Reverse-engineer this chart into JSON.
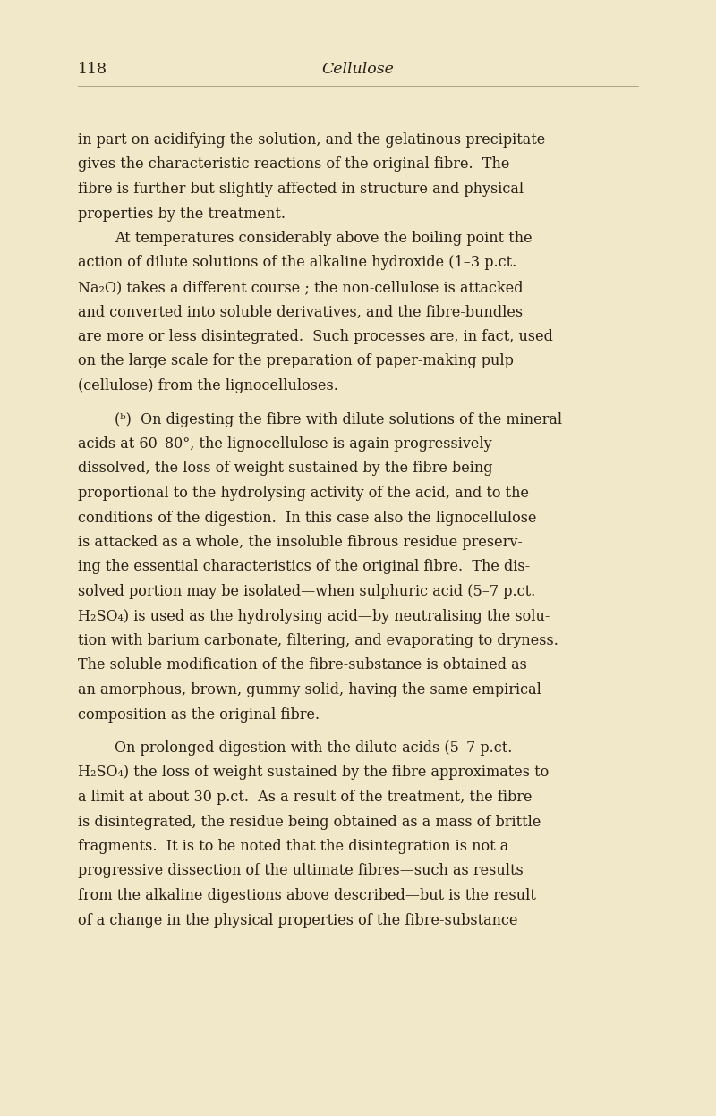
{
  "background_color": "#f0e8c8",
  "text_color": "#2a2018",
  "page_number": "118",
  "page_title": "Cellulose",
  "font_size_body": 11.5,
  "font_size_header": 12.5,
  "paragraphs": [
    {
      "indent": false,
      "blank_before": false,
      "lines": [
        "in part on acidifying the solution, and the gelatinous precipitate",
        "gives the characteristic reactions of the original fibre.  The",
        "fibre is further but slightly affected in structure and physical",
        "properties by the treatment."
      ]
    },
    {
      "indent": true,
      "blank_before": false,
      "lines": [
        "At temperatures considerably above the boiling point the",
        "action of dilute solutions of the alkaline hydroxide (1–3 p.ct.",
        "Na₂O) takes a different course ; the non-cellulose is attacked",
        "and converted into soluble derivatives, and the fibre-bundles",
        "are more or less disintegrated.  Such processes are, in fact, used",
        "on the large scale for the preparation of paper-making pulp",
        "(cellulose) from the lignocelluloses."
      ]
    },
    {
      "indent": true,
      "blank_before": true,
      "lines": [
        "(ᵇ)  On digesting the fibre with dilute solutions of the mineral",
        "acids at 60–80°, the lignocellulose is again progressively",
        "dissolved, the loss of weight sustained by the fibre being",
        "proportional to the hydrolysing activity of the acid, and to the",
        "conditions of the digestion.  In this case also the lignocellulose",
        "is attacked as a whole, the insoluble fibrous residue preserv-",
        "ing the essential characteristics of the original fibre.  The dis-",
        "solved portion may be isolated—when sulphuric acid (5–7 p.ct.",
        "H₂SO₄) is used as the hydrolysing acid—by neutralising the solu-",
        "tion with barium carbonate, filtering, and evaporating to dryness.",
        "The soluble modification of the fibre-substance is obtained as",
        "an amorphous, brown, gummy solid, having the same empirical",
        "composition as the original fibre."
      ]
    },
    {
      "indent": true,
      "blank_before": true,
      "lines": [
        "On prolonged digestion with the dilute acids (5–7 p.ct.",
        "H₂SO₄) the loss of weight sustained by the fibre approximates to",
        "a limit at about 30 p.ct.  As a result of the treatment, the fibre",
        "is disintegrated, the residue being obtained as a mass of brittle",
        "fragments.  It is to be noted that the disintegration is not a",
        "progressive dissection of the ultimate fibres—such as results",
        "from the alkaline digestions above described—but is the result",
        "of a change in the physical properties of the fibre-substance"
      ]
    }
  ]
}
